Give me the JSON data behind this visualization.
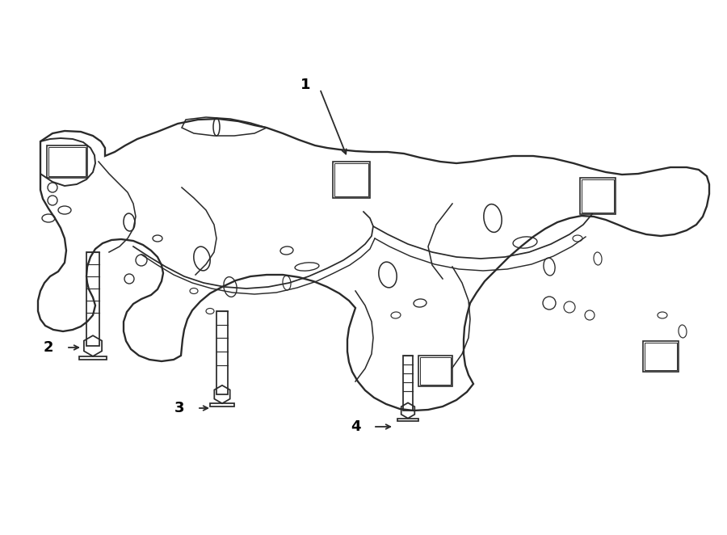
{
  "bg_color": "#ffffff",
  "line_color": "#2a2a2a",
  "figsize": [
    9.0,
    6.62
  ],
  "dpi": 100,
  "label_fontsize": 13,
  "lw": 1.4,
  "xlim": [
    0,
    900
  ],
  "ylim": [
    0,
    662
  ]
}
